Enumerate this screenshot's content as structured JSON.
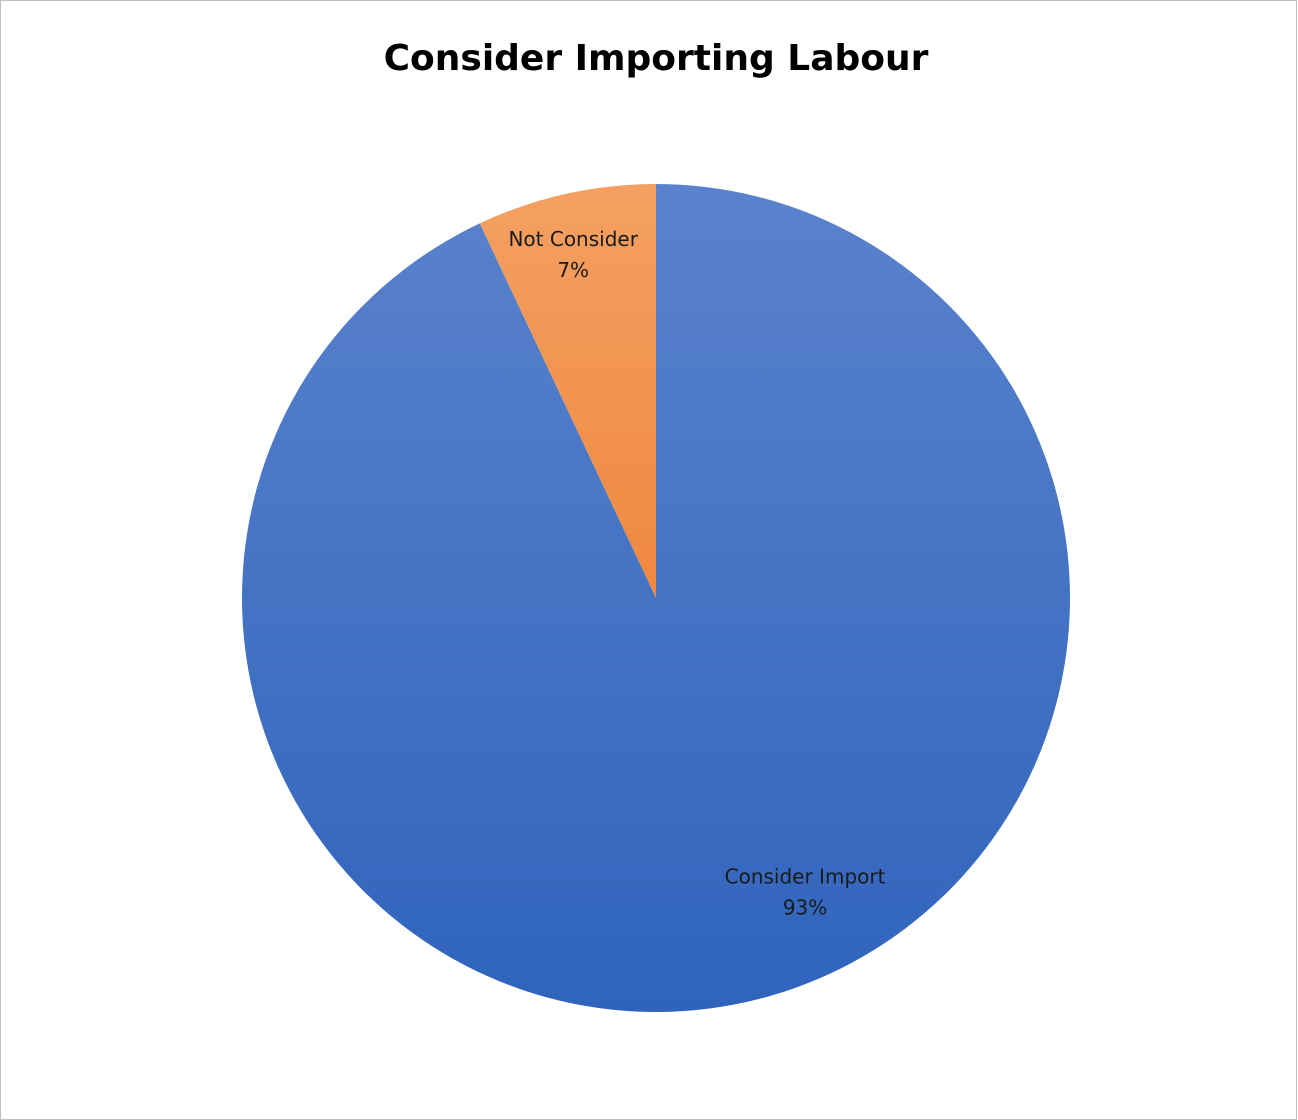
{
  "chart_data": {
    "type": "pie",
    "title": "Consider Importing Labour",
    "slices": [
      {
        "label": "Not Consider",
        "value": 7,
        "percent_label": "7%",
        "color_top": "#f4a062",
        "color_bottom": "#ea6f1d"
      },
      {
        "label": "Consider Import",
        "value": 93,
        "percent_label": "93%",
        "color_top": "#5a82cc",
        "color_bottom": "#2f64bc"
      }
    ],
    "start_angle_deg": 0,
    "direction": "counterclockwise",
    "legend": "none"
  }
}
